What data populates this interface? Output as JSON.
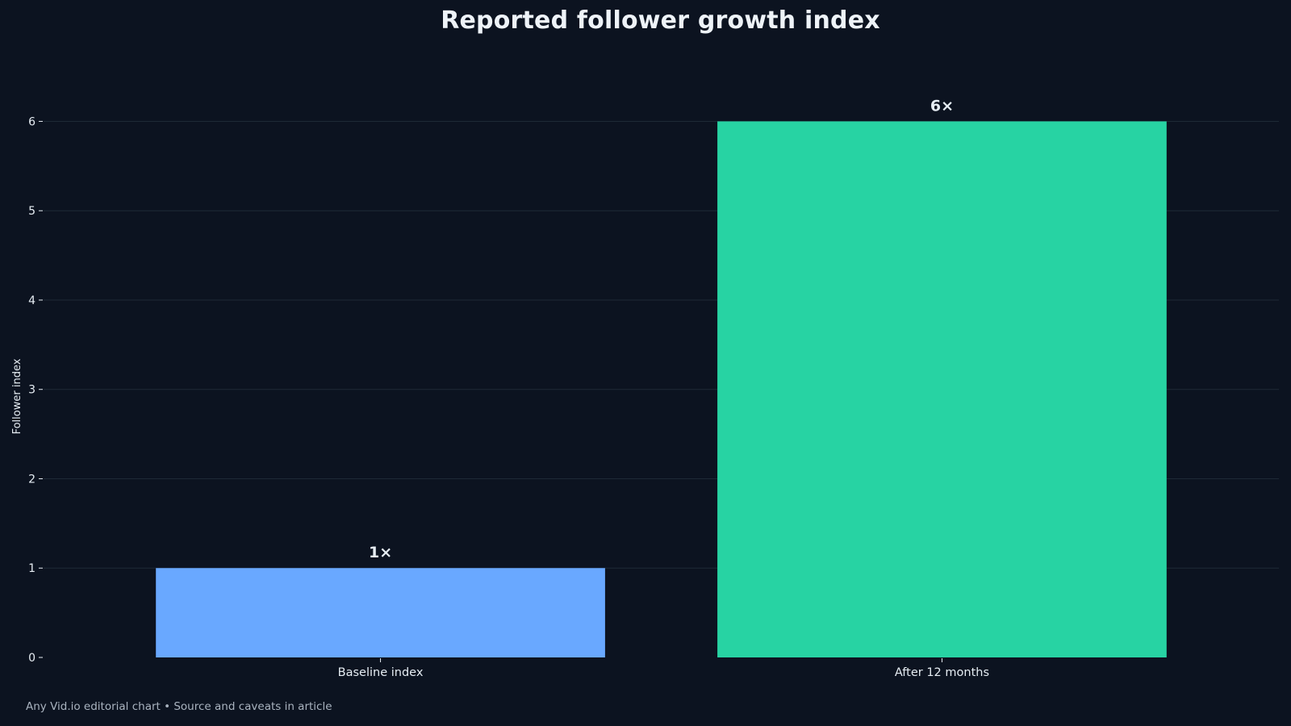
{
  "chart_data": {
    "type": "bar",
    "title": "Reported follower growth index",
    "xlabel": "",
    "ylabel": "Follower index",
    "categories": [
      "Baseline index",
      "After 12 months"
    ],
    "values": [
      1,
      6
    ],
    "value_labels": [
      "1×",
      "6×"
    ],
    "bar_colors": [
      "#69a8ff",
      "#27d3a3"
    ],
    "ylim": [
      0,
      6.6
    ],
    "yticks": [
      0,
      1,
      2,
      3,
      4,
      5,
      6
    ],
    "grid": true,
    "legend": "none"
  },
  "footnote": "Any Vid.io editorial chart • Source and caveats in article",
  "colors": {
    "background": "#0c1320",
    "grid": "#1e2a36",
    "text": "#e6edf3",
    "muted": "#a9b3bf"
  }
}
